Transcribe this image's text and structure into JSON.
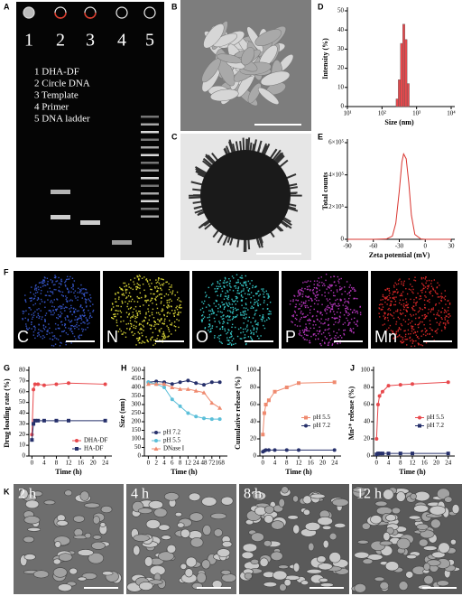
{
  "panel_labels": [
    "A",
    "B",
    "C",
    "D",
    "E",
    "F",
    "G",
    "H",
    "I",
    "J",
    "K"
  ],
  "gel": {
    "lanes": [
      "1",
      "2",
      "3",
      "4",
      "5"
    ],
    "legend": [
      "1 DHA-DF",
      "2 Circle DNA",
      "3 Template",
      "4 Primer",
      "5 DNA ladder"
    ]
  },
  "element_maps": [
    "C",
    "N",
    "O",
    "P",
    "Mn"
  ],
  "sem_times": [
    "2 h",
    "4 h",
    "8 h",
    "12 h"
  ],
  "chart_data": [
    {
      "type": "histogram",
      "xlabel": "Size (nm)",
      "ylabel": "Intensity (%)",
      "bins": [
        255,
        295,
        342,
        396,
        459,
        531,
        615
      ],
      "values": [
        4,
        14,
        33,
        43,
        35,
        12
      ],
      "color": "#e8494d",
      "xscale": "log",
      "xlim": [
        10,
        10000
      ],
      "xticks": [
        {
          "value": 10,
          "label": "10¹"
        },
        {
          "value": 100,
          "label": "10²"
        },
        {
          "value": 1000,
          "label": "10³"
        },
        {
          "value": 10000,
          "label": "10⁴"
        }
      ],
      "ylim": [
        0,
        50
      ],
      "yticks": [
        0,
        10,
        20,
        30,
        40,
        50
      ]
    },
    {
      "type": "line",
      "xlabel": "Zeta potential (mV)",
      "ylabel": "Total counts",
      "x": [
        -90,
        -60,
        -45,
        -38,
        -34,
        -30,
        -27,
        -25,
        -22,
        -19,
        -16,
        -12,
        -5,
        0,
        30
      ],
      "values": [
        0,
        0,
        2000,
        20000,
        100000,
        300000,
        480000,
        530000,
        500000,
        350000,
        150000,
        30000,
        2000,
        0,
        0
      ],
      "color": "#d9352f",
      "xlim": [
        -90,
        30
      ],
      "xticks": [
        -90,
        -60,
        -30,
        0,
        30
      ],
      "ylim": [
        0,
        600000
      ],
      "yticks": [
        0,
        {
          "value": 200000,
          "label": "2×10⁵"
        },
        {
          "value": 400000,
          "label": "4×10⁵"
        },
        {
          "value": 600000,
          "label": "6×10⁵"
        }
      ]
    },
    {
      "type": "line",
      "xlabel": "Time (h)",
      "ylabel": "Drug loading rate (%)",
      "x": [
        0,
        0.5,
        1,
        2,
        4,
        8,
        12,
        24
      ],
      "series": [
        {
          "name": "DHA-DF",
          "color": "#e8494d",
          "marker": "circle",
          "values": [
            20,
            62,
            67,
            67,
            66,
            67,
            68,
            67
          ]
        },
        {
          "name": "HA-DF",
          "color": "#26306b",
          "marker": "square",
          "values": [
            15,
            30,
            33,
            33,
            33,
            33,
            33,
            33
          ]
        }
      ],
      "xlim": [
        -1,
        25
      ],
      "xticks": [
        0,
        4,
        8,
        12,
        16,
        20,
        24
      ],
      "ylim": [
        0,
        80
      ],
      "yticks": [
        0,
        10,
        20,
        30,
        40,
        50,
        60,
        70,
        80
      ],
      "legend": "lower right"
    },
    {
      "type": "line",
      "xlabel": "Time (h)",
      "ylabel": "Size (nm)",
      "categories": [
        "0",
        "2",
        "4",
        "6",
        "8",
        "12",
        "24",
        "48",
        "72",
        "168"
      ],
      "series": [
        {
          "name": "pH 7.2",
          "color": "#26306b",
          "marker": "circle",
          "values": [
            430,
            435,
            430,
            420,
            430,
            440,
            425,
            415,
            430,
            430
          ]
        },
        {
          "name": "pH 5.5",
          "color": "#5bbfd9",
          "marker": "circle",
          "values": [
            430,
            420,
            400,
            330,
            290,
            250,
            230,
            220,
            215,
            215
          ]
        },
        {
          "name": "DNase I",
          "color": "#ef8a6f",
          "marker": "triangle",
          "values": [
            420,
            420,
            420,
            400,
            390,
            390,
            380,
            370,
            310,
            280
          ]
        }
      ],
      "ylim": [
        0,
        500
      ],
      "yticks": [
        0,
        50,
        100,
        150,
        200,
        250,
        300,
        350,
        400,
        450,
        500
      ],
      "legend": "lower left"
    },
    {
      "type": "line",
      "xlabel": "Time (h)",
      "ylabel": "Cumulative release (%)",
      "x": [
        0,
        0.5,
        1,
        2,
        4,
        8,
        12,
        24
      ],
      "series": [
        {
          "name": "pH 5.5",
          "color": "#ef8a6f",
          "marker": "square",
          "values": [
            25,
            50,
            60,
            65,
            75,
            80,
            85,
            86
          ]
        },
        {
          "name": "pH 7.2",
          "color": "#26306b",
          "marker": "circle",
          "values": [
            5,
            6,
            7,
            7,
            7,
            7,
            7,
            7
          ]
        }
      ],
      "xlim": [
        -1,
        25
      ],
      "xticks": [
        0,
        4,
        8,
        12,
        16,
        20,
        24
      ],
      "ylim": [
        0,
        100
      ],
      "yticks": [
        0,
        20,
        40,
        60,
        80,
        100
      ],
      "legend": "center right"
    },
    {
      "type": "line",
      "xlabel": "Time (h)",
      "ylabel": "Mn²⁺ release (%)",
      "x": [
        0,
        0.5,
        1,
        2,
        4,
        8,
        12,
        24
      ],
      "series": [
        {
          "name": "pH 5.5",
          "color": "#e8494d",
          "marker": "circle",
          "values": [
            20,
            60,
            70,
            75,
            82,
            83,
            84,
            86
          ]
        },
        {
          "name": "pH 7.2",
          "color": "#26306b",
          "marker": "square",
          "values": [
            2,
            3,
            3,
            3,
            3,
            3,
            3,
            3
          ]
        }
      ],
      "xlim": [
        -1,
        25
      ],
      "xticks": [
        0,
        4,
        8,
        12,
        16,
        20,
        24
      ],
      "ylim": [
        0,
        100
      ],
      "yticks": [
        0,
        20,
        40,
        60,
        80,
        100
      ],
      "legend": "center right"
    }
  ]
}
